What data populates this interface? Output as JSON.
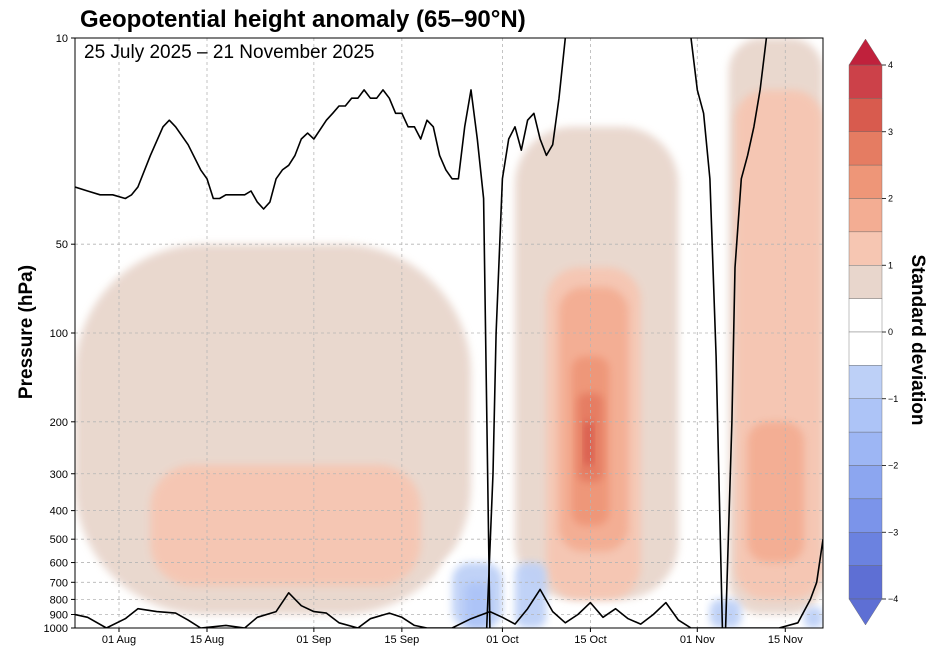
{
  "chart_data": {
    "type": "heatmap",
    "title": "Geopotential height anomaly (65–90°N)",
    "subtitle": "25 July 2025 – 21 November 2025",
    "ylabel": "Pressure (hPa)",
    "colorbar_label": "Standard deviation",
    "y_scale": "log",
    "y_direction": "decreasing-upward",
    "ylim": [
      1000,
      10
    ],
    "y_ticks": [
      10,
      50,
      100,
      200,
      300,
      400,
      500,
      600,
      700,
      800,
      900,
      1000
    ],
    "x_range": [
      "2025-07-25",
      "2025-11-21"
    ],
    "x_ticks": [
      {
        "label": "01 Aug",
        "day": 7
      },
      {
        "label": "15 Aug",
        "day": 21
      },
      {
        "label": "01 Sep",
        "day": 38
      },
      {
        "label": "15 Sep",
        "day": 52
      },
      {
        "label": "01 Oct",
        "day": 68
      },
      {
        "label": "15 Oct",
        "day": 82
      },
      {
        "label": "01 Nov",
        "day": 99
      },
      {
        "label": "15 Nov",
        "day": 113
      }
    ],
    "colorbar": {
      "range": [
        -4,
        4
      ],
      "levels": [
        -4,
        -3.5,
        -3,
        -2.5,
        -2,
        -1.5,
        -1,
        -0.5,
        0,
        0.5,
        1,
        1.5,
        2,
        2.5,
        3,
        3.5,
        4
      ],
      "ticks": [
        -4,
        -3,
        -2,
        -1,
        0,
        1,
        2,
        3,
        4
      ],
      "tick_labels": [
        "−4",
        "−3",
        "−2",
        "−1",
        "0",
        "1",
        "2",
        "3",
        "4"
      ],
      "extend": "both"
    },
    "level_colors": {
      "-4": "#5e6fd4",
      "-3.5": "#6b82e0",
      "-3": "#7b94ea",
      "-2.5": "#8ca6f0",
      "-2": "#9db6f4",
      "-1.5": "#adc4f7",
      "-1": "#bdd0f7",
      "-0.5": "#ffffff",
      "0": "#ffffff",
      "0.5": "#e8d6cc",
      "1": "#f6c6b2",
      "1.5": "#f3ad93",
      "2": "#ee9678",
      "2.5": "#e57c62",
      "3": "#d85b4e",
      "3.5": "#cc4149",
      "4": "#c0213c"
    },
    "anomaly_regions": [
      {
        "level": 0.5,
        "day_start": 0,
        "day_end": 63,
        "p_top": 50,
        "p_bottom": 900
      },
      {
        "level": 0.5,
        "day_start": 70,
        "day_end": 96,
        "p_top": 20,
        "p_bottom": 800
      },
      {
        "level": 0.5,
        "day_start": 104,
        "day_end": 119,
        "p_top": 10,
        "p_bottom": 900
      },
      {
        "level": 1,
        "day_start": 12,
        "day_end": 55,
        "p_top": 280,
        "p_bottom": 720
      },
      {
        "level": 1,
        "day_start": 75,
        "day_end": 90,
        "p_top": 60,
        "p_bottom": 800
      },
      {
        "level": 1,
        "day_start": 105,
        "day_end": 119,
        "p_top": 15,
        "p_bottom": 800
      },
      {
        "level": 1.5,
        "day_start": 77,
        "day_end": 88,
        "p_top": 70,
        "p_bottom": 550
      },
      {
        "level": 1.5,
        "day_start": 107,
        "day_end": 116,
        "p_top": 200,
        "p_bottom": 600
      },
      {
        "level": 2,
        "day_start": 79,
        "day_end": 85,
        "p_top": 120,
        "p_bottom": 450
      },
      {
        "level": 2.5,
        "day_start": 80,
        "day_end": 84,
        "p_top": 160,
        "p_bottom": 320
      },
      {
        "level": 3,
        "day_start": 81,
        "day_end": 82.5,
        "p_top": 200,
        "p_bottom": 280
      },
      {
        "level": -0.5,
        "day_start": 58,
        "day_end": 70,
        "p_top": 550,
        "p_bottom": 1000
      },
      {
        "level": -1,
        "day_start": 60,
        "day_end": 68,
        "p_top": 600,
        "p_bottom": 1000
      },
      {
        "level": -1,
        "day_start": 70,
        "day_end": 75,
        "p_top": 600,
        "p_bottom": 1000
      },
      {
        "level": -1,
        "day_start": 101,
        "day_end": 106,
        "p_top": 800,
        "p_bottom": 1000
      },
      {
        "level": -1,
        "day_start": 116,
        "day_end": 119,
        "p_top": 850,
        "p_bottom": 1000
      },
      {
        "level": -1.5,
        "day_start": 62,
        "day_end": 66,
        "p_top": 700,
        "p_bottom": 1000
      }
    ],
    "zero_contour": {
      "level": 0,
      "lines": [
        {
          "name": "upper-zero-contour",
          "points": [
            [
              0,
              32
            ],
            [
              2,
              33
            ],
            [
              4,
              34
            ],
            [
              6,
              34
            ],
            [
              8,
              35
            ],
            [
              9,
              34
            ],
            [
              10,
              32
            ],
            [
              12,
              25
            ],
            [
              14,
              20
            ],
            [
              15,
              19
            ],
            [
              16,
              20
            ],
            [
              18,
              23
            ],
            [
              20,
              28
            ],
            [
              21,
              30
            ],
            [
              22,
              35
            ],
            [
              23,
              35
            ],
            [
              24,
              34
            ],
            [
              27,
              34
            ],
            [
              28,
              33
            ],
            [
              29,
              36
            ],
            [
              30,
              38
            ],
            [
              31,
              36
            ],
            [
              32,
              30
            ],
            [
              33,
              28
            ],
            [
              34,
              27
            ],
            [
              35,
              25
            ],
            [
              36,
              22
            ],
            [
              37,
              21
            ],
            [
              38,
              22
            ],
            [
              40,
              19
            ],
            [
              41,
              18
            ],
            [
              42,
              17
            ],
            [
              43,
              17
            ],
            [
              44,
              16
            ],
            [
              45,
              16
            ],
            [
              46,
              15
            ],
            [
              47,
              16
            ],
            [
              48,
              16
            ],
            [
              49,
              15
            ],
            [
              50,
              16
            ],
            [
              51,
              18
            ],
            [
              52,
              18
            ],
            [
              53,
              20
            ],
            [
              54,
              20
            ],
            [
              55,
              22
            ],
            [
              56,
              19
            ],
            [
              57,
              20
            ],
            [
              58,
              25
            ],
            [
              59,
              28
            ],
            [
              60,
              30
            ],
            [
              61,
              30
            ],
            [
              62,
              20
            ],
            [
              63,
              15
            ],
            [
              64,
              22
            ],
            [
              65,
              35
            ],
            [
              66,
              1000
            ]
          ]
        },
        {
          "name": "october-zero-contour",
          "points": [
            [
              65.5,
              1000
            ],
            [
              66.5,
              300
            ],
            [
              67,
              100
            ],
            [
              68,
              30
            ],
            [
              69,
              22
            ],
            [
              70,
              20
            ],
            [
              71,
              24
            ],
            [
              72,
              19
            ],
            [
              73,
              18
            ],
            [
              74,
              22
            ],
            [
              75,
              25
            ],
            [
              76,
              23
            ],
            [
              77,
              16
            ],
            [
              78,
              10
            ]
          ]
        },
        {
          "name": "november-left-zero-contour",
          "points": [
            [
              98,
              10
            ],
            [
              99,
              15
            ],
            [
              100,
              18
            ],
            [
              101,
              30
            ],
            [
              102,
              120
            ],
            [
              103,
              1000
            ]
          ]
        },
        {
          "name": "november-right-zero-contour",
          "points": [
            [
              103.5,
              1000
            ],
            [
              104.5,
              200
            ],
            [
              105,
              60
            ],
            [
              106,
              30
            ],
            [
              107,
              25
            ],
            [
              108,
              20
            ],
            [
              109,
              15
            ],
            [
              110,
              10
            ]
          ]
        },
        {
          "name": "surface-zero-contour",
          "points": [
            [
              0,
              900
            ],
            [
              2,
              920
            ],
            [
              5,
              1000
            ],
            [
              8,
              930
            ],
            [
              10,
              860
            ],
            [
              13,
              880
            ],
            [
              16,
              890
            ],
            [
              18,
              940
            ],
            [
              20,
              1000
            ],
            [
              24,
              980
            ],
            [
              27,
              1000
            ],
            [
              29,
              920
            ],
            [
              32,
              880
            ],
            [
              34,
              760
            ],
            [
              36,
              840
            ],
            [
              38,
              880
            ],
            [
              40,
              890
            ],
            [
              42,
              960
            ],
            [
              45,
              1000
            ],
            [
              47,
              930
            ],
            [
              50,
              890
            ],
            [
              52,
              920
            ],
            [
              54,
              980
            ],
            [
              56,
              1000
            ],
            [
              60,
              1000
            ],
            [
              63,
              930
            ],
            [
              66,
              880
            ],
            [
              68,
              920
            ],
            [
              70,
              970
            ],
            [
              72,
              860
            ],
            [
              74,
              740
            ],
            [
              76,
              880
            ],
            [
              78,
              960
            ],
            [
              80,
              900
            ],
            [
              82,
              820
            ],
            [
              84,
              920
            ],
            [
              86,
              860
            ],
            [
              88,
              930
            ],
            [
              90,
              970
            ],
            [
              92,
              900
            ],
            [
              94,
              820
            ],
            [
              96,
              940
            ],
            [
              98,
              1000
            ],
            [
              112,
              1000
            ],
            [
              115,
              960
            ],
            [
              117,
              800
            ],
            [
              118,
              700
            ],
            [
              119,
              500
            ]
          ]
        }
      ]
    }
  }
}
